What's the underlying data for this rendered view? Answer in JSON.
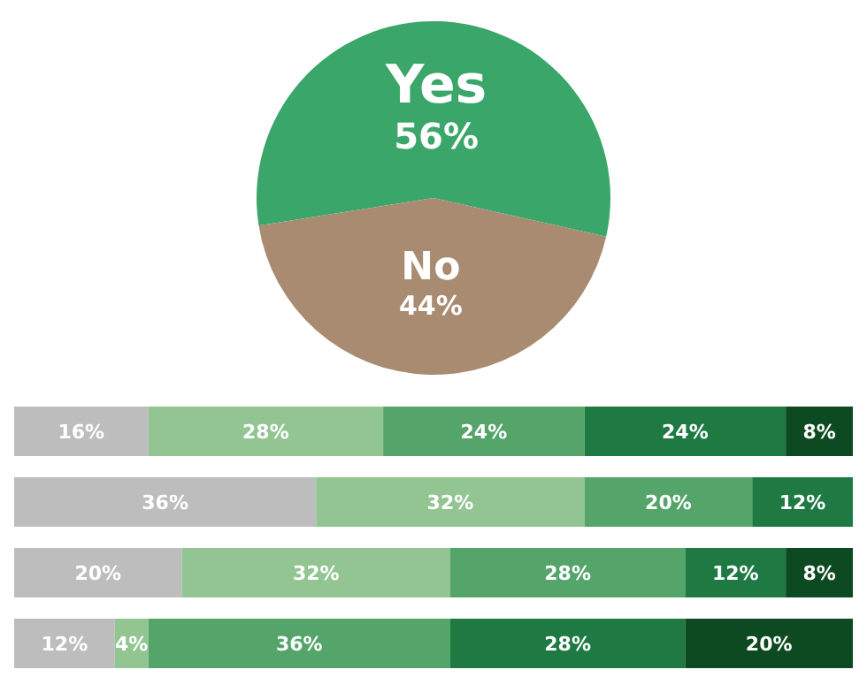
{
  "chart_data": [
    {
      "type": "pie",
      "categories": [
        "Yes",
        "No"
      ],
      "values": [
        56,
        44
      ],
      "colors": [
        "#3aa66a",
        "#a88b70"
      ],
      "value_labels": [
        "56%",
        "44%"
      ]
    },
    {
      "type": "bar",
      "orientation": "horizontal",
      "stacked": true,
      "categories": [
        null,
        null,
        null,
        null
      ],
      "xlim": [
        0,
        100
      ],
      "series": [
        {
          "color": "#bdbdbd",
          "values": [
            16,
            36,
            20,
            12
          ],
          "value_labels": [
            "16%",
            "36%",
            "20%",
            "12%"
          ]
        },
        {
          "color": "#93c592",
          "values": [
            28,
            32,
            32,
            4
          ],
          "value_labels": [
            "28%",
            "32%",
            "32%",
            "4%"
          ]
        },
        {
          "color": "#55a56b",
          "values": [
            24,
            20,
            28,
            36
          ],
          "value_labels": [
            "24%",
            "20%",
            "28%",
            "36%"
          ]
        },
        {
          "color": "#1e7a42",
          "values": [
            24,
            12,
            12,
            28
          ],
          "value_labels": [
            "24%",
            "12%",
            "12%",
            "28%"
          ]
        },
        {
          "color": "#0d4a22",
          "values": [
            8,
            0,
            8,
            20
          ],
          "value_labels": [
            "8%",
            null,
            "8%",
            "20%"
          ]
        }
      ]
    }
  ]
}
